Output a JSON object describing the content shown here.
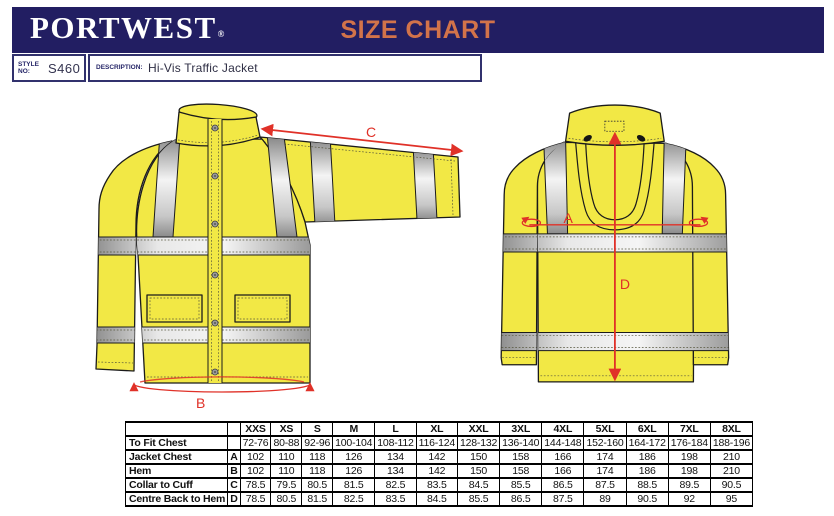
{
  "header": {
    "brand": "PORTWEST",
    "registered_mark": "®",
    "title": "SIZE CHART"
  },
  "style_bar": {
    "style_label": "STYLE NO:",
    "style_no": "S460",
    "description_label": "DESCRIPTION:",
    "description": "Hi-Vis Traffic Jacket"
  },
  "diagram": {
    "front": {
      "c_label": "C",
      "b_label": "B"
    },
    "back": {
      "a_label": "A",
      "d_label": "D"
    }
  },
  "size_table": {
    "type": "table",
    "columns": [
      "XXS",
      "XS",
      "S",
      "M",
      "L",
      "XL",
      "XXL",
      "3XL",
      "4XL",
      "5XL",
      "6XL",
      "7XL",
      "8XL"
    ],
    "rows": [
      {
        "label": "To Fit Chest",
        "letter": "",
        "values": [
          "72-76",
          "80-88",
          "92-96",
          "100-104",
          "108-112",
          "116-124",
          "128-132",
          "136-140",
          "144-148",
          "152-160",
          "164-172",
          "176-184",
          "188-196"
        ]
      },
      {
        "label": "Jacket Chest",
        "letter": "A",
        "values": [
          "102",
          "110",
          "118",
          "126",
          "134",
          "142",
          "150",
          "158",
          "166",
          "174",
          "186",
          "198",
          "210"
        ]
      },
      {
        "label": "Hem",
        "letter": "B",
        "values": [
          "102",
          "110",
          "118",
          "126",
          "134",
          "142",
          "150",
          "158",
          "166",
          "174",
          "186",
          "198",
          "210"
        ]
      },
      {
        "label": "Collar to Cuff",
        "letter": "C",
        "values": [
          "78.5",
          "79.5",
          "80.5",
          "81.5",
          "82.5",
          "83.5",
          "84.5",
          "85.5",
          "86.5",
          "87.5",
          "88.5",
          "89.5",
          "90.5"
        ]
      },
      {
        "label": "Centre Back to Hem",
        "letter": "D",
        "values": [
          "78.5",
          "80.5",
          "81.5",
          "82.5",
          "83.5",
          "84.5",
          "85.5",
          "86.5",
          "87.5",
          "89",
          "90.5",
          "92",
          "95"
        ]
      }
    ]
  },
  "colors": {
    "navy": "#221e62",
    "orange": "#d2734a",
    "hi_vis_yellow": "#f2e845",
    "reflective_silver": "#d9d9d9",
    "arrow_red": "#e03128"
  }
}
